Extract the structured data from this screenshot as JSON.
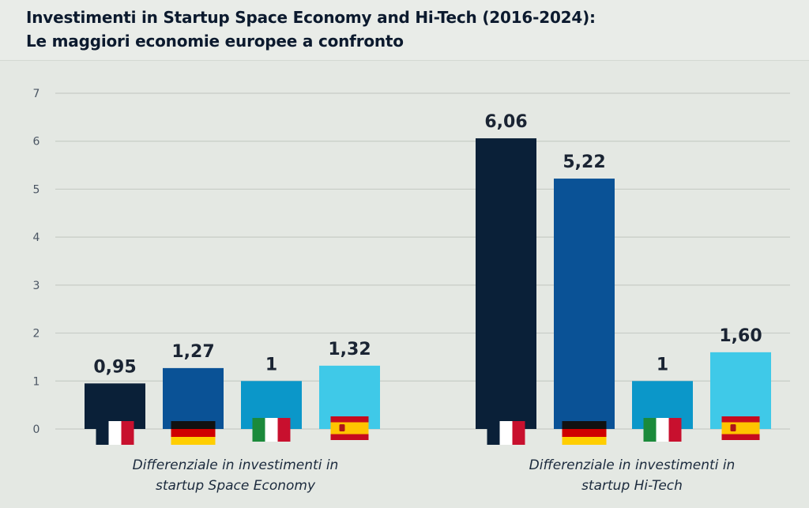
{
  "title": {
    "line1": "Investimenti in Startup Space Economy and Hi-Tech (2016-2024):",
    "line2": "Le maggiori economie europee a confronto"
  },
  "chart_data": {
    "type": "bar",
    "ylim": [
      0,
      7
    ],
    "yticks": [
      0,
      1,
      2,
      3,
      4,
      5,
      6,
      7
    ],
    "grid": true,
    "categories": [
      "Differenziale in investimenti in startup Space Economy",
      "Differenziale in investimenti in startup Hi-Tech"
    ],
    "group_labels": [
      [
        "Differenziale in investimenti in",
        "startup Space Economy"
      ],
      [
        "Differenziale in investimenti in",
        "startup Hi-Tech"
      ]
    ],
    "series": [
      {
        "country": "France",
        "flag": "fr",
        "color": "#0a2038",
        "values": [
          0.95,
          6.06
        ],
        "labels": [
          "0,95",
          "6,06"
        ]
      },
      {
        "country": "Germany",
        "flag": "de",
        "color": "#0a5296",
        "values": [
          1.27,
          5.22
        ],
        "labels": [
          "1,27",
          "5,22"
        ]
      },
      {
        "country": "Italy",
        "flag": "it",
        "color": "#0b97c9",
        "values": [
          1,
          1
        ],
        "labels": [
          "1",
          "1"
        ]
      },
      {
        "country": "Spain",
        "flag": "es",
        "color": "#3fc9e8",
        "values": [
          1.32,
          1.6
        ],
        "labels": [
          "1,32",
          "1,60"
        ]
      }
    ]
  }
}
